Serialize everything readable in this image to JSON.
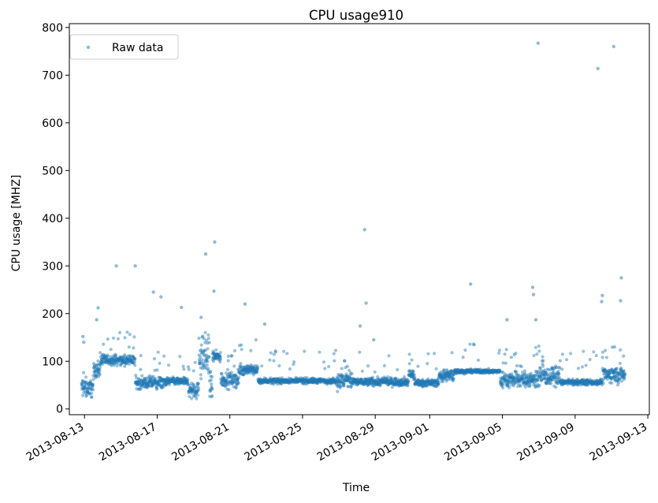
{
  "chart_data": {
    "type": "scatter",
    "title": "CPU usage910",
    "xlabel": "Time",
    "ylabel": "CPU usage [MHZ]",
    "x_axis_type": "date",
    "xlim": [
      "2013-08-12T04:00",
      "2013-09-13T02:00"
    ],
    "ylim": [
      -12,
      808
    ],
    "x_ticks": [
      "2013-08-13",
      "2013-08-17",
      "2013-08-21",
      "2013-08-25",
      "2013-08-29",
      "2013-09-01",
      "2013-09-05",
      "2013-09-09",
      "2013-09-13"
    ],
    "y_ticks": [
      0,
      100,
      200,
      300,
      400,
      500,
      600,
      700,
      800
    ],
    "grid": false,
    "legend_position": "top-left",
    "series": [
      {
        "name": "Raw data",
        "color": "#1f77b4",
        "marker": "dot",
        "segments": [
          {
            "start": "2013-08-12T20:00",
            "end": "2013-08-13T12:00",
            "level": 45,
            "spread": 14
          },
          {
            "start": "2013-08-13T12:00",
            "end": "2013-08-13T21:00",
            "level": 82,
            "spread": 10
          },
          {
            "start": "2013-08-13T21:00",
            "end": "2013-08-15T19:00",
            "level": 102,
            "spread": 7
          },
          {
            "start": "2013-08-15T19:00",
            "end": "2013-08-17T10:00",
            "level": 55,
            "spread": 9
          },
          {
            "start": "2013-08-17T10:00",
            "end": "2013-08-18T17:00",
            "level": 58,
            "spread": 6
          },
          {
            "start": "2013-08-18T17:00",
            "end": "2013-08-19T07:00",
            "level": 40,
            "spread": 12
          },
          {
            "start": "2013-08-19T07:00",
            "end": "2013-08-19T21:00",
            "level": 110,
            "spread": 30
          },
          {
            "start": "2013-08-19T21:00",
            "end": "2013-08-20T01:00",
            "level": 45,
            "spread": 18
          },
          {
            "start": "2013-08-20T01:00",
            "end": "2013-08-20T12:00",
            "level": 110,
            "spread": 8
          },
          {
            "start": "2013-08-20T12:00",
            "end": "2013-08-21T12:00",
            "level": 62,
            "spread": 12
          },
          {
            "start": "2013-08-21T12:00",
            "end": "2013-08-22T13:00",
            "level": 82,
            "spread": 7
          },
          {
            "start": "2013-08-22T13:00",
            "end": "2013-08-26T21:00",
            "level": 59,
            "spread": 4
          },
          {
            "start": "2013-08-26T21:00",
            "end": "2013-08-27T18:00",
            "level": 60,
            "spread": 14
          },
          {
            "start": "2013-08-27T18:00",
            "end": "2013-08-30T20:00",
            "level": 57,
            "spread": 6
          },
          {
            "start": "2013-08-30T20:00",
            "end": "2013-08-31T04:00",
            "level": 72,
            "spread": 8
          },
          {
            "start": "2013-08-31T04:00",
            "end": "2013-09-01T12:00",
            "level": 55,
            "spread": 5
          },
          {
            "start": "2013-09-01T12:00",
            "end": "2013-09-02T08:00",
            "level": 70,
            "spread": 9
          },
          {
            "start": "2013-09-02T08:00",
            "end": "2013-09-04T21:00",
            "level": 79,
            "spread": 3
          },
          {
            "start": "2013-09-04T21:00",
            "end": "2013-09-06T18:00",
            "level": 62,
            "spread": 12
          },
          {
            "start": "2013-09-06T18:00",
            "end": "2013-09-08T04:00",
            "level": 68,
            "spread": 14
          },
          {
            "start": "2013-09-08T04:00",
            "end": "2013-09-10T12:00",
            "level": 56,
            "spread": 4
          },
          {
            "start": "2013-09-10T12:00",
            "end": "2013-09-11T18:00",
            "level": 72,
            "spread": 12
          }
        ],
        "outliers": [
          {
            "x": "2013-08-12T22:00",
            "y": 152
          },
          {
            "x": "2013-08-12T23:00",
            "y": 140
          },
          {
            "x": "2013-08-13T18:00",
            "y": 212
          },
          {
            "x": "2013-08-13T16:00",
            "y": 187
          },
          {
            "x": "2013-08-14T18:00",
            "y": 300
          },
          {
            "x": "2013-08-15T19:00",
            "y": 300
          },
          {
            "x": "2013-08-16T19:00",
            "y": 245
          },
          {
            "x": "2013-08-17T05:00",
            "y": 235
          },
          {
            "x": "2013-08-18T08:00",
            "y": 213
          },
          {
            "x": "2013-08-19T10:00",
            "y": 192
          },
          {
            "x": "2013-08-19T16:00",
            "y": 325
          },
          {
            "x": "2013-08-20T04:00",
            "y": 350
          },
          {
            "x": "2013-08-20T03:00",
            "y": 247
          },
          {
            "x": "2013-08-21T20:00",
            "y": 220
          },
          {
            "x": "2013-08-22T22:00",
            "y": 178
          },
          {
            "x": "2013-08-28T04:00",
            "y": 174
          },
          {
            "x": "2013-08-28T10:00",
            "y": 376
          },
          {
            "x": "2013-08-28T12:00",
            "y": 222
          },
          {
            "x": "2013-08-28T22:00",
            "y": 145
          },
          {
            "x": "2013-09-03T06:00",
            "y": 262
          },
          {
            "x": "2013-09-05T06:00",
            "y": 187
          },
          {
            "x": "2013-09-06T16:00",
            "y": 255
          },
          {
            "x": "2013-09-06T17:00",
            "y": 240
          },
          {
            "x": "2013-09-06T20:00",
            "y": 187
          },
          {
            "x": "2013-09-06T23:00",
            "y": 767
          },
          {
            "x": "2013-09-10T06:00",
            "y": 714
          },
          {
            "x": "2013-09-10T12:00",
            "y": 238
          },
          {
            "x": "2013-09-10T11:00",
            "y": 225
          },
          {
            "x": "2013-09-11T03:00",
            "y": 760
          },
          {
            "x": "2013-09-11T04:00",
            "y": 130
          },
          {
            "x": "2013-09-11T13:00",
            "y": 275
          },
          {
            "x": "2013-09-11T12:00",
            "y": 227
          }
        ]
      }
    ]
  }
}
